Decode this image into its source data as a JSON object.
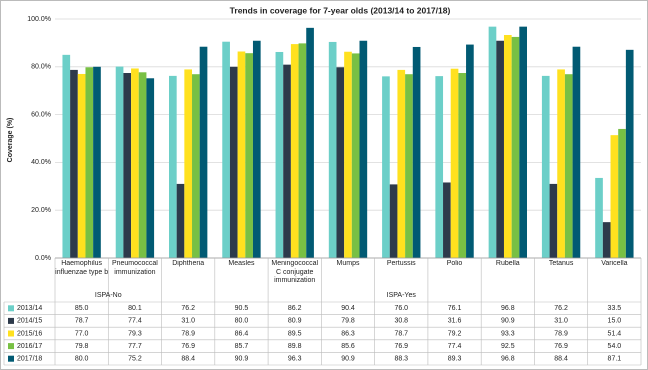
{
  "chart_data": {
    "type": "bar",
    "title": "Trends in coverage for 7-year olds (2013/14 to 2017/18)",
    "y_label": "Coverage (%)",
    "categories": [
      "Haemophilus influenzae type b",
      "Pneumococcal immunization",
      "Diphtheria",
      "Measles",
      "Meningococcal C conjugate immunization",
      "Mumps",
      "Pertussis",
      "Polio",
      "Rubella",
      "Tetanus",
      "Varicella"
    ],
    "groups": [
      {
        "name": "ISPA-No",
        "count": 2
      },
      {
        "name": "ISPA-Yes",
        "count": 9
      }
    ],
    "series": [
      {
        "name": "2013/14",
        "color": "#6ccfc8",
        "values": [
          85.0,
          80.1,
          76.2,
          90.5,
          86.2,
          90.4,
          76.0,
          76.1,
          96.8,
          76.2,
          33.5
        ],
        "value_labels": [
          "85.0",
          "80.1",
          "76.2",
          "90.5",
          "86.2",
          "90.4",
          "76.0",
          "76.1",
          "96.8",
          "76.2",
          "33.5"
        ]
      },
      {
        "name": "2014/15",
        "color": "#2d3a4b",
        "values": [
          78.7,
          77.4,
          31.0,
          80.0,
          80.9,
          79.8,
          30.8,
          31.6,
          90.9,
          31.0,
          15.0
        ],
        "value_labels": [
          "78.7",
          "77.4",
          "31.0",
          "80.0",
          "80.9",
          "79.8",
          "30.8",
          "31.6",
          "90.9",
          "31.0",
          "15.0"
        ]
      },
      {
        "name": "2015/16",
        "color": "#ffe11f",
        "values": [
          77.0,
          79.3,
          78.9,
          86.4,
          89.5,
          86.3,
          78.7,
          79.2,
          93.3,
          78.9,
          51.4
        ],
        "value_labels": [
          "77.0",
          "79.3",
          "78.9",
          "86.4",
          "89.5",
          "86.3",
          "78.7",
          "79.2",
          "93.3",
          "78.9",
          "51.4"
        ]
      },
      {
        "name": "2016/17",
        "color": "#78c044",
        "values": [
          79.8,
          77.7,
          76.9,
          85.7,
          89.8,
          85.6,
          76.9,
          77.4,
          92.5,
          76.9,
          54.0
        ],
        "value_labels": [
          "79.8",
          "77.7",
          "76.9",
          "85.7",
          "89.8",
          "85.6",
          "76.9",
          "77.4",
          "92.5",
          "76.9",
          "54.0"
        ]
      },
      {
        "name": "2017/18",
        "color": "#015a73",
        "values": [
          80.0,
          75.2,
          88.4,
          90.9,
          96.3,
          90.9,
          88.3,
          89.3,
          96.8,
          88.4,
          87.1
        ],
        "value_labels": [
          "80.0",
          "75.2",
          "88.4",
          "90.9",
          "96.3",
          "90.9",
          "88.3",
          "89.3",
          "96.8",
          "88.4",
          "87.1"
        ]
      }
    ],
    "ylim": [
      0,
      100
    ],
    "yticks": [
      {
        "value": 0,
        "label": "0.0%"
      },
      {
        "value": 20,
        "label": "20.0%"
      },
      {
        "value": 40,
        "label": "40.0%"
      },
      {
        "value": 60,
        "label": "60.0%"
      },
      {
        "value": 80,
        "label": "80.0%"
      },
      {
        "value": 100,
        "label": "100.0%"
      }
    ],
    "grid": true
  }
}
